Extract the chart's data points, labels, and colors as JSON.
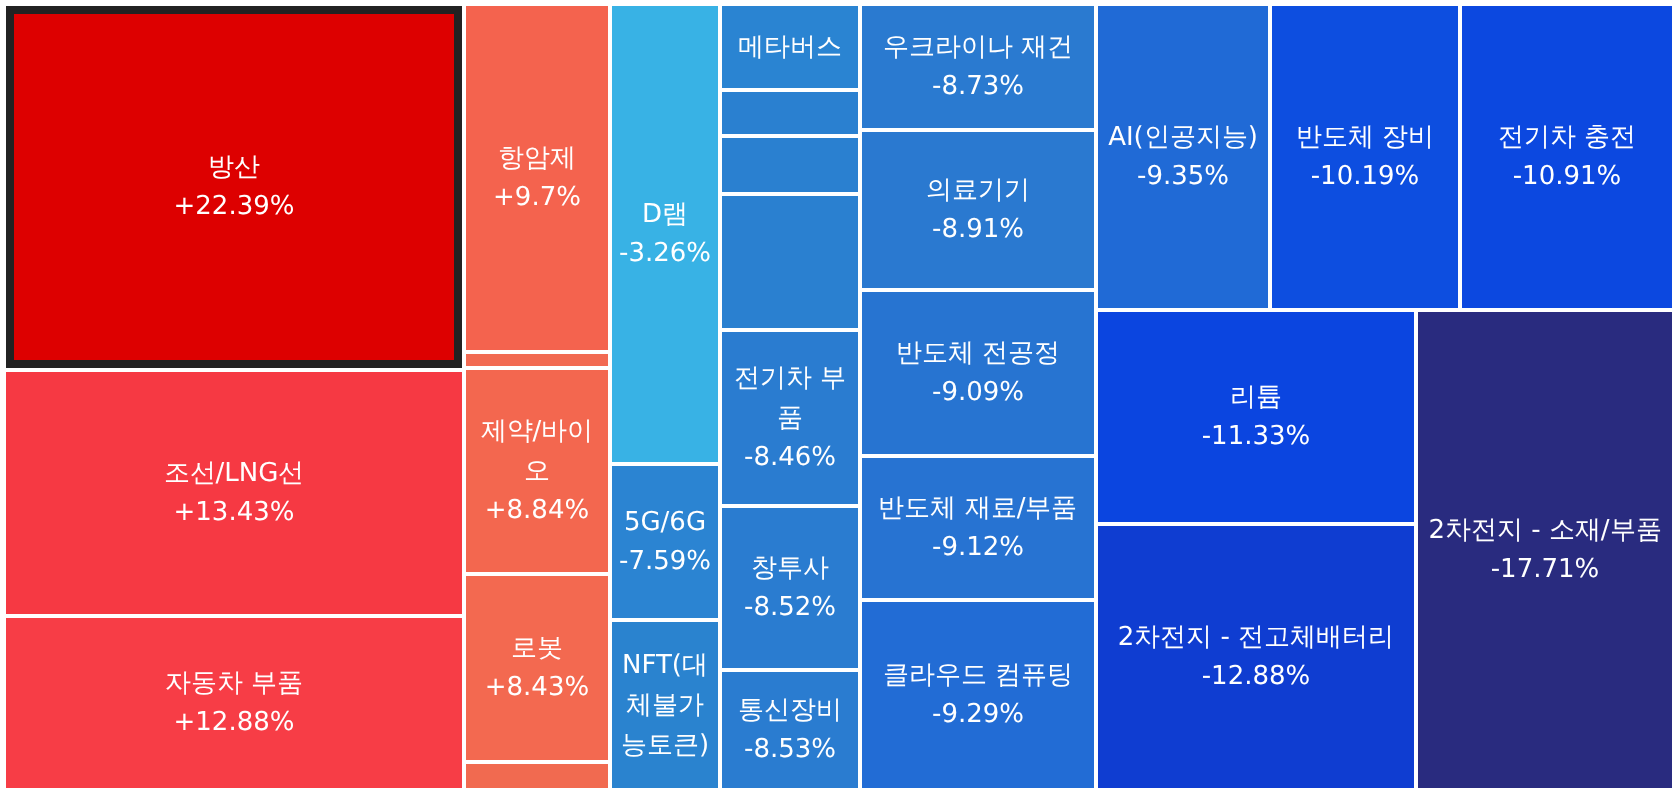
{
  "chart_data": {
    "type": "other",
    "categories": [
      "방산",
      "조선/LNG선",
      "자동차 부품",
      "항암제",
      null,
      "제약/바이오",
      "로봇",
      null,
      "D램",
      "5G/6G",
      "NFT(대체불가능토큰)",
      "메타버스",
      null,
      null,
      null,
      "전기차 부품",
      "창투사",
      "통신장비",
      "우크라이나 재건",
      "의료기기",
      "반도체 전공정",
      "반도체 재료/부품",
      "클라우드 컴퓨팅",
      "AI(인공지능)",
      "반도체 장비",
      "전기차 충전",
      "리튬",
      "2차전지 - 전고체배터리",
      "2차전지 - 소재/부품"
    ],
    "values": [
      22.39,
      13.43,
      12.88,
      9.7,
      null,
      8.84,
      8.43,
      null,
      -3.26,
      -7.59,
      null,
      null,
      null,
      null,
      null,
      -8.46,
      -8.52,
      -8.53,
      -8.73,
      -8.91,
      -9.09,
      -9.12,
      -9.29,
      -9.35,
      -10.19,
      -10.91,
      -11.33,
      -12.88,
      -17.71
    ],
    "value_labels": [
      "+22.39%",
      "+13.43%",
      "+12.88%",
      "+9.7%",
      null,
      "+8.84%",
      "+8.43%",
      null,
      "-3.26%",
      "-7.59%",
      null,
      null,
      null,
      null,
      null,
      "-8.46%",
      "-8.52%",
      "-8.53%",
      "-8.73%",
      "-8.91%",
      "-9.09%",
      "-9.12%",
      "-9.29%",
      "-9.35%",
      "-10.19%",
      "-10.91%",
      "-11.33%",
      "-12.88%",
      "-17.71%"
    ],
    "colors": [
      null,
      null,
      null,
      null,
      "#f26a52",
      null,
      null,
      "#f16a50",
      null,
      null,
      "#2a83cf",
      "#2a84d2",
      "#2a80d0",
      "#2a80d0",
      "#2a80d0",
      null,
      null,
      null,
      null,
      null,
      null,
      null,
      null,
      null,
      null,
      null,
      null,
      null,
      null
    ]
  }
}
